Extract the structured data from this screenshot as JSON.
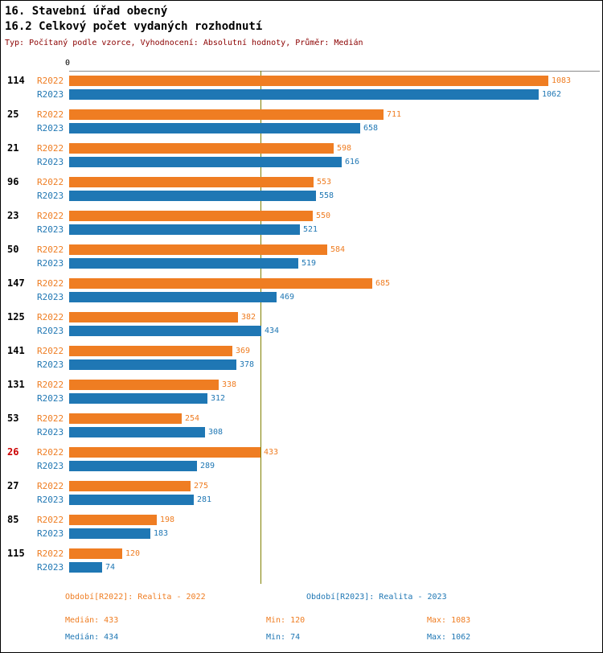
{
  "header": {
    "title1": "16. Stavební úřad obecný",
    "title2": "16.2 Celkový počet vydaných rozhodnutí",
    "subtitle": "Typ: Počítaný podle vzorce, Vyhodnocení: Absolutní hodnoty, Průměr: Medián"
  },
  "chart_data": {
    "type": "bar",
    "orientation": "horizontal",
    "zero_label": "0",
    "categories": [
      "114",
      "25",
      "21",
      "96",
      "23",
      "50",
      "147",
      "125",
      "141",
      "131",
      "53",
      "26",
      "27",
      "85",
      "115"
    ],
    "highlight_category": "26",
    "highlight_color": "#CC0000",
    "series": [
      {
        "name": "R2022",
        "color": "#EF7D22",
        "values": [
          1083,
          711,
          598,
          553,
          550,
          584,
          685,
          382,
          369,
          338,
          254,
          433,
          275,
          198,
          120
        ]
      },
      {
        "name": "R2023",
        "color": "#1F77B4",
        "values": [
          1062,
          658,
          616,
          558,
          521,
          519,
          469,
          434,
          378,
          312,
          308,
          289,
          281,
          183,
          74
        ]
      }
    ],
    "xlim": [
      0,
      1100
    ],
    "median_line_value": 433,
    "median_line_color": "#808000",
    "grid": "single-top-axis",
    "legend_position": "bottom"
  },
  "footer": {
    "period_2022": "Období[R2022]: Realita - 2022",
    "period_2023": "Období[R2023]: Realita - 2023",
    "median_2022": "Medián: 433",
    "min_2022": "Min: 120",
    "max_2022": "Max: 1083",
    "median_2023": "Medián: 434",
    "min_2023": "Min: 74",
    "max_2023": "Max: 1062"
  },
  "colors": {
    "series_2022": "#EF7D22",
    "series_2023": "#1F77B4",
    "subtitle_text": "#8B0000",
    "median_line": "#808000",
    "axis_line": "#8A8A8A",
    "highlight_category": "#CC0000"
  }
}
